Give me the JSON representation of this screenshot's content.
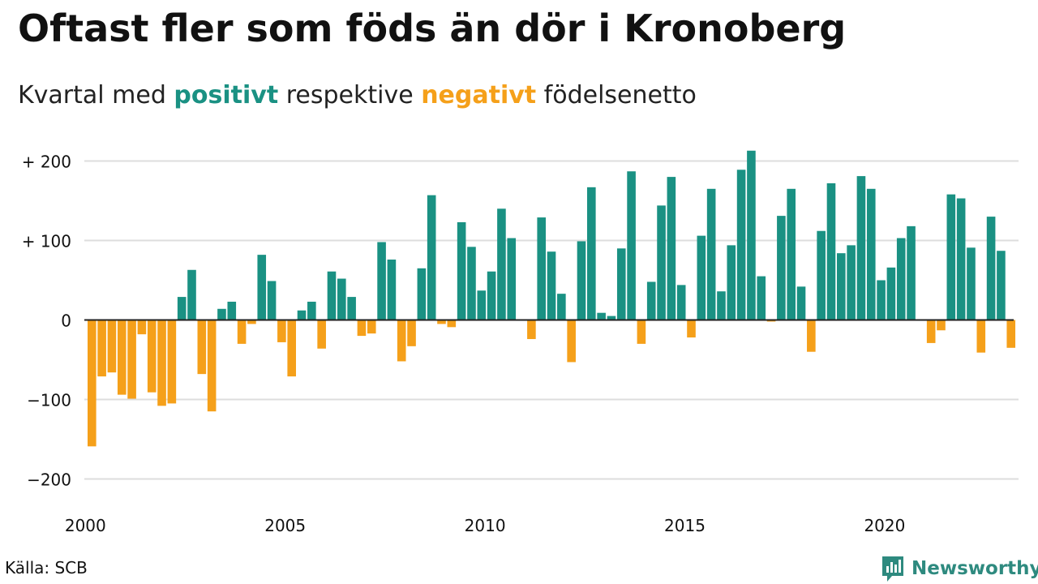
{
  "title": "Oftast fler som föds än dör i Kronoberg",
  "subtitle": {
    "part1": "Kvartal med ",
    "positive_word": "positivt",
    "part2": " respektive ",
    "negative_word": "negativt",
    "part3": " födelsenetto"
  },
  "colors": {
    "positive": "#1a9183",
    "negative": "#f5a01a",
    "brand": "#2e8a7f",
    "grid": "#dddddd",
    "zero_line": "#222222"
  },
  "source": "Källa: SCB",
  "brand": {
    "name": "Newsworthy",
    "icon": "bar-chart-logo-icon"
  },
  "chart_data": {
    "type": "bar",
    "xlabel": "",
    "ylabel": "",
    "ylim": [
      -230,
      215
    ],
    "y_ticks": [
      {
        "value": 200,
        "label": "+ 200"
      },
      {
        "value": 100,
        "label": "+ 100"
      },
      {
        "value": 0,
        "label": "0"
      },
      {
        "value": -100,
        "label": "−100"
      },
      {
        "value": -200,
        "label": "−200"
      }
    ],
    "x_ticks": [
      {
        "value": 2000,
        "label": "2000"
      },
      {
        "value": 2005,
        "label": "2005"
      },
      {
        "value": 2010,
        "label": "2010"
      },
      {
        "value": 2015,
        "label": "2015"
      },
      {
        "value": 2020,
        "label": "2020"
      }
    ],
    "x_range": [
      2000,
      2023
    ],
    "grid": true,
    "legend": "none (colour key given in subtitle)",
    "bars": [
      {
        "x": "2000 Q1",
        "value": -159
      },
      {
        "x": "2000 Q2",
        "value": -71
      },
      {
        "x": "2000 Q3",
        "value": -66
      },
      {
        "x": "2000 Q4",
        "value": -94
      },
      {
        "x": "2001 Q1",
        "value": -99
      },
      {
        "x": "2001 Q2",
        "value": -18
      },
      {
        "x": "2001 Q3",
        "value": -91
      },
      {
        "x": "2001 Q4",
        "value": -108
      },
      {
        "x": "2002 Q1",
        "value": -105
      },
      {
        "x": "2002 Q2",
        "value": 29
      },
      {
        "x": "2002 Q3",
        "value": 63
      },
      {
        "x": "2002 Q4",
        "value": -68
      },
      {
        "x": "2003 Q1",
        "value": -115
      },
      {
        "x": "2003 Q2",
        "value": 14
      },
      {
        "x": "2003 Q3",
        "value": 23
      },
      {
        "x": "2003 Q4",
        "value": -30
      },
      {
        "x": "2004 Q1",
        "value": -5
      },
      {
        "x": "2004 Q2",
        "value": 82
      },
      {
        "x": "2004 Q3",
        "value": 49
      },
      {
        "x": "2004 Q4",
        "value": -28
      },
      {
        "x": "2005 Q1",
        "value": -71
      },
      {
        "x": "2005 Q2",
        "value": 12
      },
      {
        "x": "2005 Q3",
        "value": 23
      },
      {
        "x": "2005 Q4",
        "value": -36
      },
      {
        "x": "2006 Q1",
        "value": 61
      },
      {
        "x": "2006 Q2",
        "value": 52
      },
      {
        "x": "2006 Q3",
        "value": 29
      },
      {
        "x": "2006 Q4",
        "value": -20
      },
      {
        "x": "2007 Q1",
        "value": -17
      },
      {
        "x": "2007 Q2",
        "value": 98
      },
      {
        "x": "2007 Q3",
        "value": 76
      },
      {
        "x": "2007 Q4",
        "value": -52
      },
      {
        "x": "2008 Q1",
        "value": -33
      },
      {
        "x": "2008 Q2",
        "value": 65
      },
      {
        "x": "2008 Q3",
        "value": 157
      },
      {
        "x": "2008 Q4",
        "value": -5
      },
      {
        "x": "2009 Q1",
        "value": -9
      },
      {
        "x": "2009 Q2",
        "value": 123
      },
      {
        "x": "2009 Q3",
        "value": 92
      },
      {
        "x": "2009 Q4",
        "value": 37
      },
      {
        "x": "2010 Q1",
        "value": 61
      },
      {
        "x": "2010 Q2",
        "value": 140
      },
      {
        "x": "2010 Q3",
        "value": 103
      },
      {
        "x": "2010 Q4",
        "value": 0
      },
      {
        "x": "2011 Q1",
        "value": -24
      },
      {
        "x": "2011 Q2",
        "value": 129
      },
      {
        "x": "2011 Q3",
        "value": 86
      },
      {
        "x": "2011 Q4",
        "value": 33
      },
      {
        "x": "2012 Q1",
        "value": -53
      },
      {
        "x": "2012 Q2",
        "value": 99
      },
      {
        "x": "2012 Q3",
        "value": 167
      },
      {
        "x": "2012 Q4",
        "value": 9
      },
      {
        "x": "2013 Q1",
        "value": 5
      },
      {
        "x": "2013 Q2",
        "value": 90
      },
      {
        "x": "2013 Q3",
        "value": 187
      },
      {
        "x": "2013 Q4",
        "value": -30
      },
      {
        "x": "2014 Q1",
        "value": 48
      },
      {
        "x": "2014 Q2",
        "value": 144
      },
      {
        "x": "2014 Q3",
        "value": 180
      },
      {
        "x": "2014 Q4",
        "value": 44
      },
      {
        "x": "2015 Q1",
        "value": -22
      },
      {
        "x": "2015 Q2",
        "value": 106
      },
      {
        "x": "2015 Q3",
        "value": 165
      },
      {
        "x": "2015 Q4",
        "value": 36
      },
      {
        "x": "2016 Q1",
        "value": 94
      },
      {
        "x": "2016 Q2",
        "value": 189
      },
      {
        "x": "2016 Q3",
        "value": 213
      },
      {
        "x": "2016 Q4",
        "value": 55
      },
      {
        "x": "2017 Q1",
        "value": -2
      },
      {
        "x": "2017 Q2",
        "value": 131
      },
      {
        "x": "2017 Q3",
        "value": 165
      },
      {
        "x": "2017 Q4",
        "value": 42
      },
      {
        "x": "2018 Q1",
        "value": -40
      },
      {
        "x": "2018 Q2",
        "value": 112
      },
      {
        "x": "2018 Q3",
        "value": 172
      },
      {
        "x": "2018 Q4",
        "value": 84
      },
      {
        "x": "2019 Q1",
        "value": 94
      },
      {
        "x": "2019 Q2",
        "value": 181
      },
      {
        "x": "2019 Q3",
        "value": 165
      },
      {
        "x": "2019 Q4",
        "value": 50
      },
      {
        "x": "2020 Q1",
        "value": 66
      },
      {
        "x": "2020 Q2",
        "value": 103
      },
      {
        "x": "2020 Q3",
        "value": 118
      },
      {
        "x": "2020 Q4",
        "value": 0
      },
      {
        "x": "2021 Q1",
        "value": -29
      },
      {
        "x": "2021 Q2",
        "value": -13
      },
      {
        "x": "2021 Q3",
        "value": 158
      },
      {
        "x": "2021 Q4",
        "value": 153
      },
      {
        "x": "2022 Q1",
        "value": 91
      },
      {
        "x": "2022 Q2",
        "value": -41
      },
      {
        "x": "2022 Q3",
        "value": 130
      },
      {
        "x": "2022 Q4",
        "value": 87
      },
      {
        "x": "2023 Q1",
        "value": -35
      }
    ]
  }
}
